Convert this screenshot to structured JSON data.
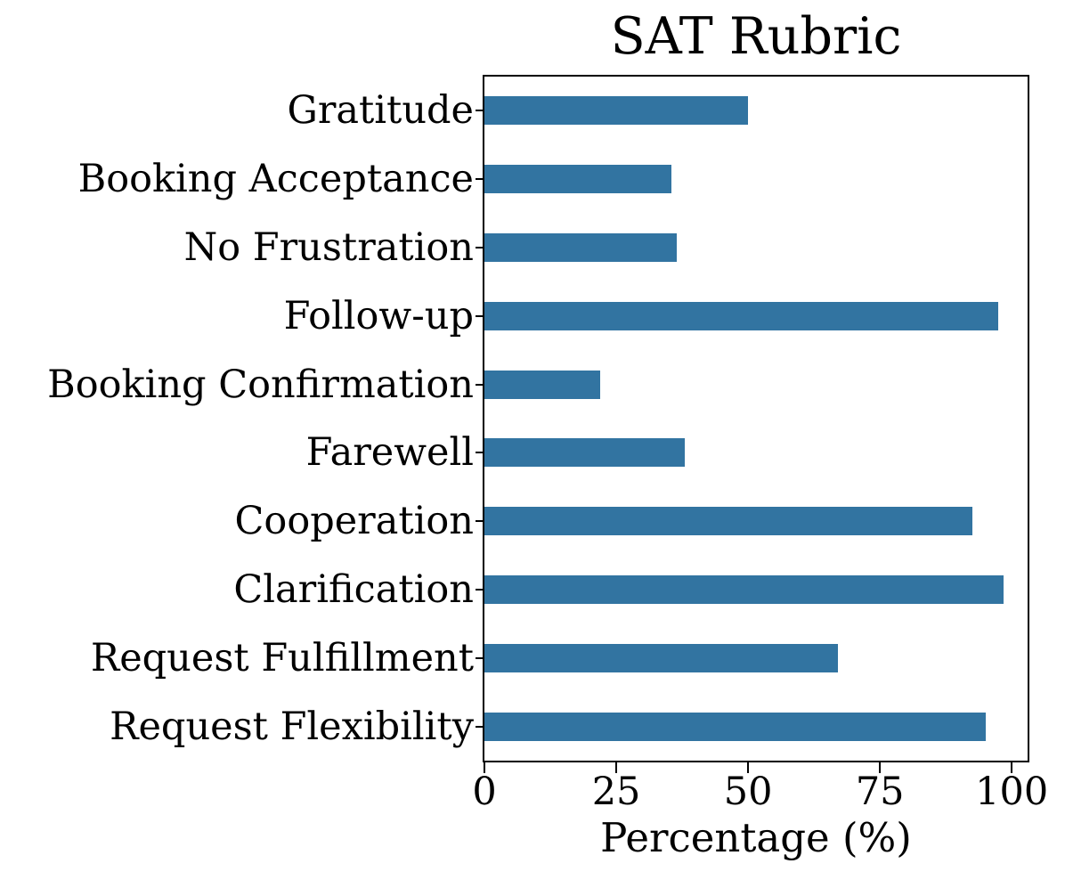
{
  "figure": {
    "background_color": "#ffffff",
    "axis_color": "#000000",
    "text_color": "#000000"
  },
  "chart_data": {
    "type": "bar",
    "orientation": "horizontal",
    "title": "SAT Rubric",
    "xlabel": "Percentage (%)",
    "ylabel": "",
    "categories": [
      "Gratitude",
      "Booking Acceptance",
      "No Frustration",
      "Follow-up",
      "Booking Confirmation",
      "Farewell",
      "Cooperation",
      "Clarification",
      "Request Fulfillment",
      "Request Flexibility"
    ],
    "values": [
      50,
      35.5,
      36.5,
      97.5,
      22,
      38,
      92.5,
      98.5,
      67,
      95
    ],
    "xticks": [
      0,
      25,
      50,
      75,
      100
    ],
    "xlim": [
      0,
      103
    ],
    "grid": false,
    "legend": false,
    "bar_color": "#3274a1"
  }
}
